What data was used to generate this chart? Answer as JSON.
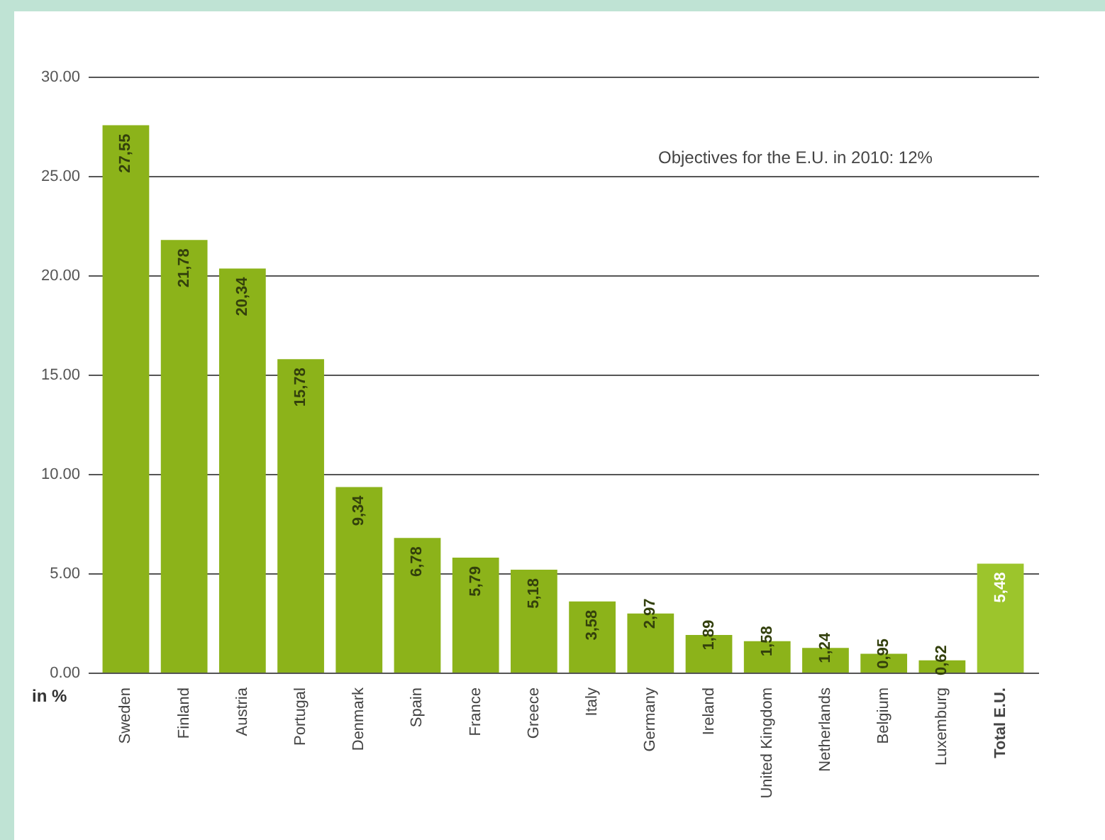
{
  "chart_data": {
    "type": "bar",
    "ylabel": "in %",
    "categories": [
      "Sweden",
      "Finland",
      "Austria",
      "Portugal",
      "Denmark",
      "Spain",
      "France",
      "Greece",
      "Italy",
      "Germany",
      "Ireland",
      "United Kingdom",
      "Netherlands",
      "Belgium",
      "Luxemburg",
      "Total E.U."
    ],
    "values": [
      27.55,
      21.78,
      20.34,
      15.78,
      9.34,
      6.78,
      5.79,
      5.18,
      3.58,
      2.97,
      1.89,
      1.58,
      1.24,
      0.95,
      0.62,
      5.48
    ],
    "value_labels": [
      "27,55",
      "21,78",
      "20,34",
      "15,78",
      "9,34",
      "6,78",
      "5,79",
      "5,18",
      "3,58",
      "2,97",
      "1,89",
      "1,58",
      "1,24",
      "0,95",
      "0,62",
      "5,48"
    ],
    "colors": [
      "#8cb31a",
      "#8cb31a",
      "#8cb31a",
      "#8cb31a",
      "#8cb31a",
      "#8cb31a",
      "#8cb31a",
      "#8cb31a",
      "#8cb31a",
      "#8cb31a",
      "#8cb31a",
      "#8cb31a",
      "#8cb31a",
      "#8cb31a",
      "#8cb31a",
      "#9cc52c"
    ],
    "ylim": [
      0,
      30
    ],
    "yticks": [
      {
        "value": 0,
        "label": "0.00"
      },
      {
        "value": 5,
        "label": "5.00"
      },
      {
        "value": 10,
        "label": "10.00"
      },
      {
        "value": 15,
        "label": "15.00"
      },
      {
        "value": 20,
        "label": "20.00"
      },
      {
        "value": 25,
        "label": "25.00"
      },
      {
        "value": 30,
        "label": "30.00"
      }
    ],
    "grid": "y",
    "legend": false,
    "annotations": [
      "Objectives for the E.U. in 2010: 12%"
    ]
  }
}
